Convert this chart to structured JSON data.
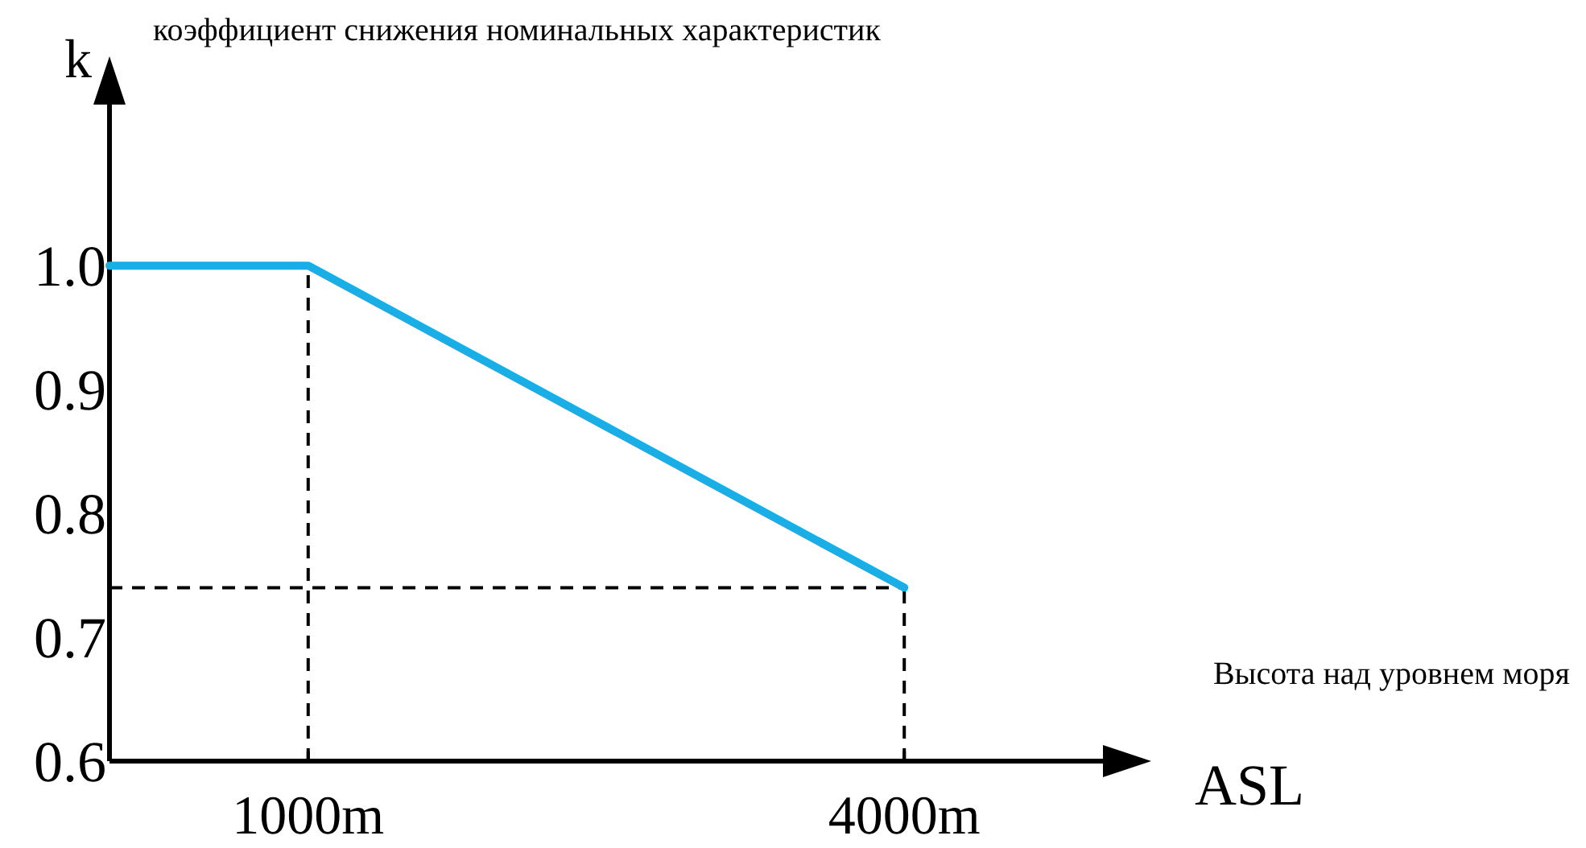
{
  "chart_data": {
    "type": "line",
    "ylabel": "k",
    "xlabel": "ASL",
    "annotations": [
      "коэффициент снижения номинальных характеристик",
      "Высота над уровнем моря"
    ],
    "series": [
      {
        "color": "#1aaee6",
        "x": [
          0,
          1000,
          4000
        ],
        "values": [
          1.0,
          1.0,
          0.74
        ]
      }
    ],
    "xlim": [
      0,
      5000
    ],
    "xticks": [
      {
        "value": 1000,
        "label": "1000m"
      },
      {
        "value": 4000,
        "label": "4000m"
      }
    ],
    "ylim": [
      0.6,
      1.13
    ],
    "yticks": [
      {
        "value": 0.6,
        "label": "0.6"
      },
      {
        "value": 0.7,
        "label": "0.7"
      },
      {
        "value": 0.8,
        "label": "0.8"
      },
      {
        "value": 0.9,
        "label": "0.9"
      },
      {
        "value": 1.0,
        "label": "1.0"
      }
    ],
    "ref_lines": [
      {
        "axis": "x",
        "value": 1000,
        "line_style": "dashed"
      },
      {
        "axis": "x",
        "value": 4000,
        "line_style": "dashed"
      },
      {
        "axis": "y",
        "value": 0.74,
        "line_style": "dashed"
      }
    ],
    "grid": false,
    "marker": "none",
    "line_style": "solid"
  }
}
